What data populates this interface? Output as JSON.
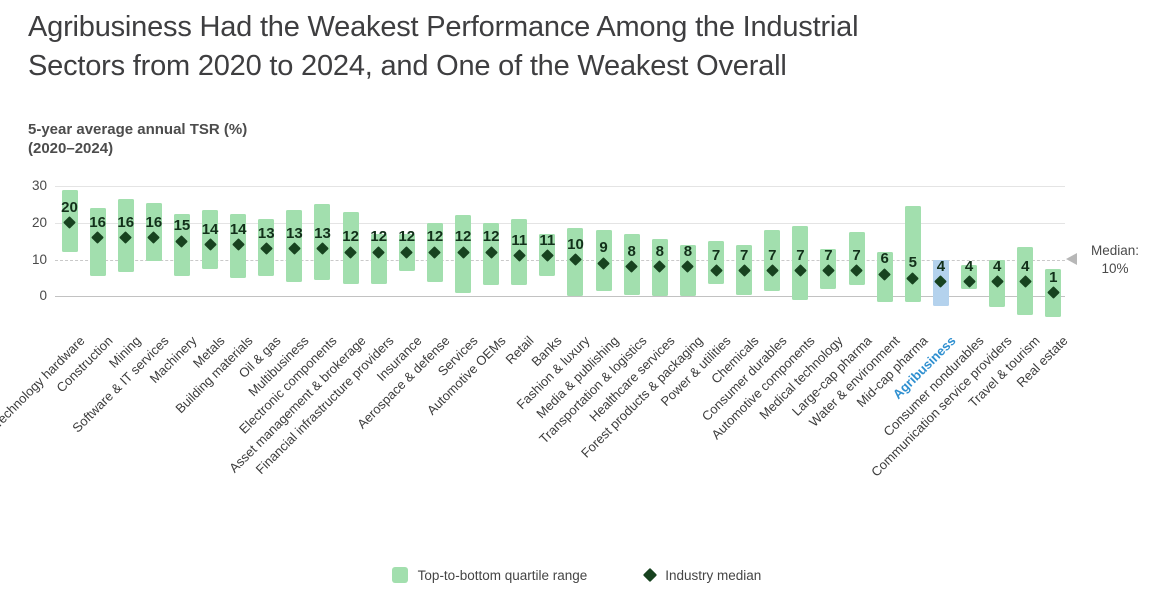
{
  "title": {
    "full": "Agribusiness Had the Weakest Performance Among the Industrial Sectors from 2020 to 2024, and One of the Weakest Overall",
    "line1": "Agribusiness Had the Weakest Performance Among the Industrial",
    "line2": "Sectors from 2020 to 2024, and One of the Weakest Overall"
  },
  "subtitle": {
    "line1": "5-year average annual TSR (%)",
    "line2": "(2020–2024)"
  },
  "median_annotation": {
    "label": "Median:",
    "value": "10%"
  },
  "legend": [
    {
      "label": "Top-to-bottom quartile range",
      "swatch": "green-bar"
    },
    {
      "label": "Industry median",
      "swatch": "dark-diamond"
    }
  ],
  "colors": {
    "bar_green": "#a2dfae",
    "bar_highlight_blue": "#b4d2ed",
    "diamond_dark_green": "#17421f",
    "value_label": "#12301a",
    "highlight_label_blue": "#2e8fd0",
    "median_line_gray": "#c9c9c9"
  },
  "chart_data": {
    "type": "bar",
    "subtype": "floating quartile-range bars with median diamond markers",
    "title": "5-year average annual TSR (%) (2020–2024)",
    "xlabel": "",
    "ylabel": "5-year average annual TSR (%)",
    "ylim": [
      -8,
      30
    ],
    "yticks": [
      30,
      20,
      10,
      0
    ],
    "grid": "horizontal",
    "median_line_value": 10,
    "highlighted_category": "Agribusiness",
    "legend_position": "bottom-center",
    "sectors": [
      {
        "name": "Technology hardware",
        "median": 20,
        "q_low": 12,
        "q_high": 29,
        "highlight": false
      },
      {
        "name": "Construction",
        "median": 16,
        "q_low": 5.5,
        "q_high": 24,
        "highlight": false
      },
      {
        "name": "Mining",
        "median": 16,
        "q_low": 6.5,
        "q_high": 26.5,
        "highlight": false
      },
      {
        "name": "Software & IT services",
        "median": 16,
        "q_low": 9.5,
        "q_high": 25.5,
        "highlight": false
      },
      {
        "name": "Machinery",
        "median": 15,
        "q_low": 5.5,
        "q_high": 22.5,
        "highlight": false
      },
      {
        "name": "Metals",
        "median": 14,
        "q_low": 7.5,
        "q_high": 23.5,
        "highlight": false
      },
      {
        "name": "Building materials",
        "median": 14,
        "q_low": 5,
        "q_high": 22.5,
        "highlight": false
      },
      {
        "name": "Oil & gas",
        "median": 13,
        "q_low": 5.5,
        "q_high": 21,
        "highlight": false
      },
      {
        "name": "Multibusiness",
        "median": 13,
        "q_low": 4,
        "q_high": 23.5,
        "highlight": false
      },
      {
        "name": "Electronic components",
        "median": 13,
        "q_low": 4.5,
        "q_high": 25,
        "highlight": false
      },
      {
        "name": "Asset management & brokerage",
        "median": 12,
        "q_low": 3.5,
        "q_high": 23,
        "highlight": false
      },
      {
        "name": "Financial infrastructure providers",
        "median": 12,
        "q_low": 3.5,
        "q_high": 17,
        "highlight": false
      },
      {
        "name": "Insurance",
        "median": 12,
        "q_low": 7,
        "q_high": 17,
        "highlight": false
      },
      {
        "name": "Aerospace & defense",
        "median": 12,
        "q_low": 4,
        "q_high": 20,
        "highlight": false
      },
      {
        "name": "Services",
        "median": 12,
        "q_low": 1,
        "q_high": 22,
        "highlight": false
      },
      {
        "name": "Automotive OEMs",
        "median": 12,
        "q_low": 3,
        "q_high": 20,
        "highlight": false
      },
      {
        "name": "Retail",
        "median": 11,
        "q_low": 3,
        "q_high": 21,
        "highlight": false
      },
      {
        "name": "Banks",
        "median": 11,
        "q_low": 5.5,
        "q_high": 17,
        "highlight": false
      },
      {
        "name": "Fashion & luxury",
        "median": 10,
        "q_low": 0,
        "q_high": 18.5,
        "highlight": false
      },
      {
        "name": "Media & publishing",
        "median": 9,
        "q_low": 1.5,
        "q_high": 18,
        "highlight": false
      },
      {
        "name": "Transportation & logistics",
        "median": 8,
        "q_low": 0.5,
        "q_high": 17,
        "highlight": false
      },
      {
        "name": "Healthcare services",
        "median": 8,
        "q_low": 0,
        "q_high": 15.5,
        "highlight": false
      },
      {
        "name": "Forest products & packaging",
        "median": 8,
        "q_low": 0,
        "q_high": 14,
        "highlight": false
      },
      {
        "name": "Power & utilities",
        "median": 7,
        "q_low": 3.5,
        "q_high": 15,
        "highlight": false
      },
      {
        "name": "Chemicals",
        "median": 7,
        "q_low": 0.5,
        "q_high": 14,
        "highlight": false
      },
      {
        "name": "Consumer durables",
        "median": 7,
        "q_low": 1.5,
        "q_high": 18,
        "highlight": false
      },
      {
        "name": "Automotive components",
        "median": 7,
        "q_low": -1,
        "q_high": 19,
        "highlight": false
      },
      {
        "name": "Medical technology",
        "median": 7,
        "q_low": 2,
        "q_high": 13,
        "highlight": false
      },
      {
        "name": "Large-cap pharma",
        "median": 7,
        "q_low": 3,
        "q_high": 17.5,
        "highlight": false
      },
      {
        "name": "Water & environment",
        "median": 6,
        "q_low": -1.5,
        "q_high": 12,
        "highlight": false
      },
      {
        "name": "Mid-cap pharma",
        "median": 5,
        "q_low": -1.5,
        "q_high": 24.5,
        "highlight": false
      },
      {
        "name": "Agribusiness",
        "median": 4,
        "q_low": -2.5,
        "q_high": 10,
        "highlight": true
      },
      {
        "name": "Consumer nondurables",
        "median": 4,
        "q_low": 2,
        "q_high": 8.5,
        "highlight": false
      },
      {
        "name": "Communication service providers",
        "median": 4,
        "q_low": -3,
        "q_high": 10,
        "highlight": false
      },
      {
        "name": "Travel & tourism",
        "median": 4,
        "q_low": -5,
        "q_high": 13.5,
        "highlight": false
      },
      {
        "name": "Real estate",
        "median": 1,
        "q_low": -5.5,
        "q_high": 7.5,
        "highlight": false
      }
    ]
  }
}
